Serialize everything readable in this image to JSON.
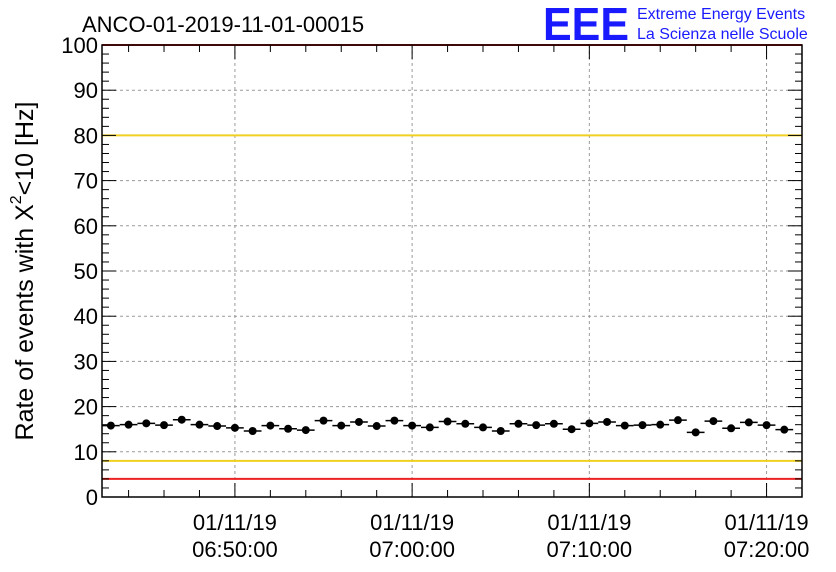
{
  "chart_data": {
    "type": "scatter",
    "title": "ANCO-01-2019-11-01-00015",
    "ylabel": "Rate of events with X",
    "ylabel_sup": "2",
    "ylabel_rest": "<10 [Hz]",
    "ylim": [
      0,
      100
    ],
    "y_ticks": [
      "0",
      "10",
      "20",
      "30",
      "40",
      "50",
      "60",
      "70",
      "80",
      "90",
      "100"
    ],
    "xlim": [
      "06:42:30",
      "07:22:00"
    ],
    "x_ticks": [
      {
        "time": "06:50:00",
        "date": "01/11/19",
        "label": "06:50:00"
      },
      {
        "time": "07:00:00",
        "date": "01/11/19",
        "label": "07:00:00"
      },
      {
        "time": "07:10:00",
        "date": "01/11/19",
        "label": "07:10:00"
      },
      {
        "time": "07:20:00",
        "date": "01/11/19",
        "label": "07:20:00"
      }
    ],
    "grid": true,
    "reference_lines": [
      {
        "y": 100,
        "color": "#ee2222"
      },
      {
        "y": 80,
        "color": "#f0d020"
      },
      {
        "y": 8,
        "color": "#f0d020"
      },
      {
        "y": 4,
        "color": "#ee2222"
      }
    ],
    "series": [
      {
        "color": "#000000",
        "x": [
          "06:43:00",
          "06:44:00",
          "06:45:00",
          "06:46:00",
          "06:47:00",
          "06:48:00",
          "06:49:00",
          "06:50:00",
          "06:51:00",
          "06:52:00",
          "06:53:00",
          "06:54:00",
          "06:55:00",
          "06:56:00",
          "06:57:00",
          "06:58:00",
          "06:59:00",
          "07:00:00",
          "07:01:00",
          "07:02:00",
          "07:03:00",
          "07:04:00",
          "07:05:00",
          "07:06:00",
          "07:07:00",
          "07:08:00",
          "07:09:00",
          "07:10:00",
          "07:11:00",
          "07:12:00",
          "07:13:00",
          "07:14:00",
          "07:15:00",
          "07:16:00",
          "07:17:00",
          "07:18:00",
          "07:19:00",
          "07:20:00",
          "07:21:00"
        ],
        "values": [
          15.8,
          16.0,
          16.3,
          15.9,
          17.1,
          16.0,
          15.7,
          15.3,
          14.6,
          15.8,
          15.1,
          14.8,
          16.9,
          15.8,
          16.6,
          15.7,
          16.9,
          15.8,
          15.4,
          16.7,
          16.2,
          15.4,
          14.6,
          16.2,
          15.9,
          16.2,
          15.0,
          16.3,
          16.6,
          15.8,
          15.9,
          16.0,
          17.0,
          14.3,
          16.8,
          15.2,
          16.5,
          15.9,
          14.9
        ],
        "xerr_min": 0.5
      }
    ]
  },
  "logo": {
    "mark": "EEE",
    "line1": "Extreme Energy Events",
    "line2": "La Scienza nelle Scuole",
    "color": "#1a1aff"
  }
}
